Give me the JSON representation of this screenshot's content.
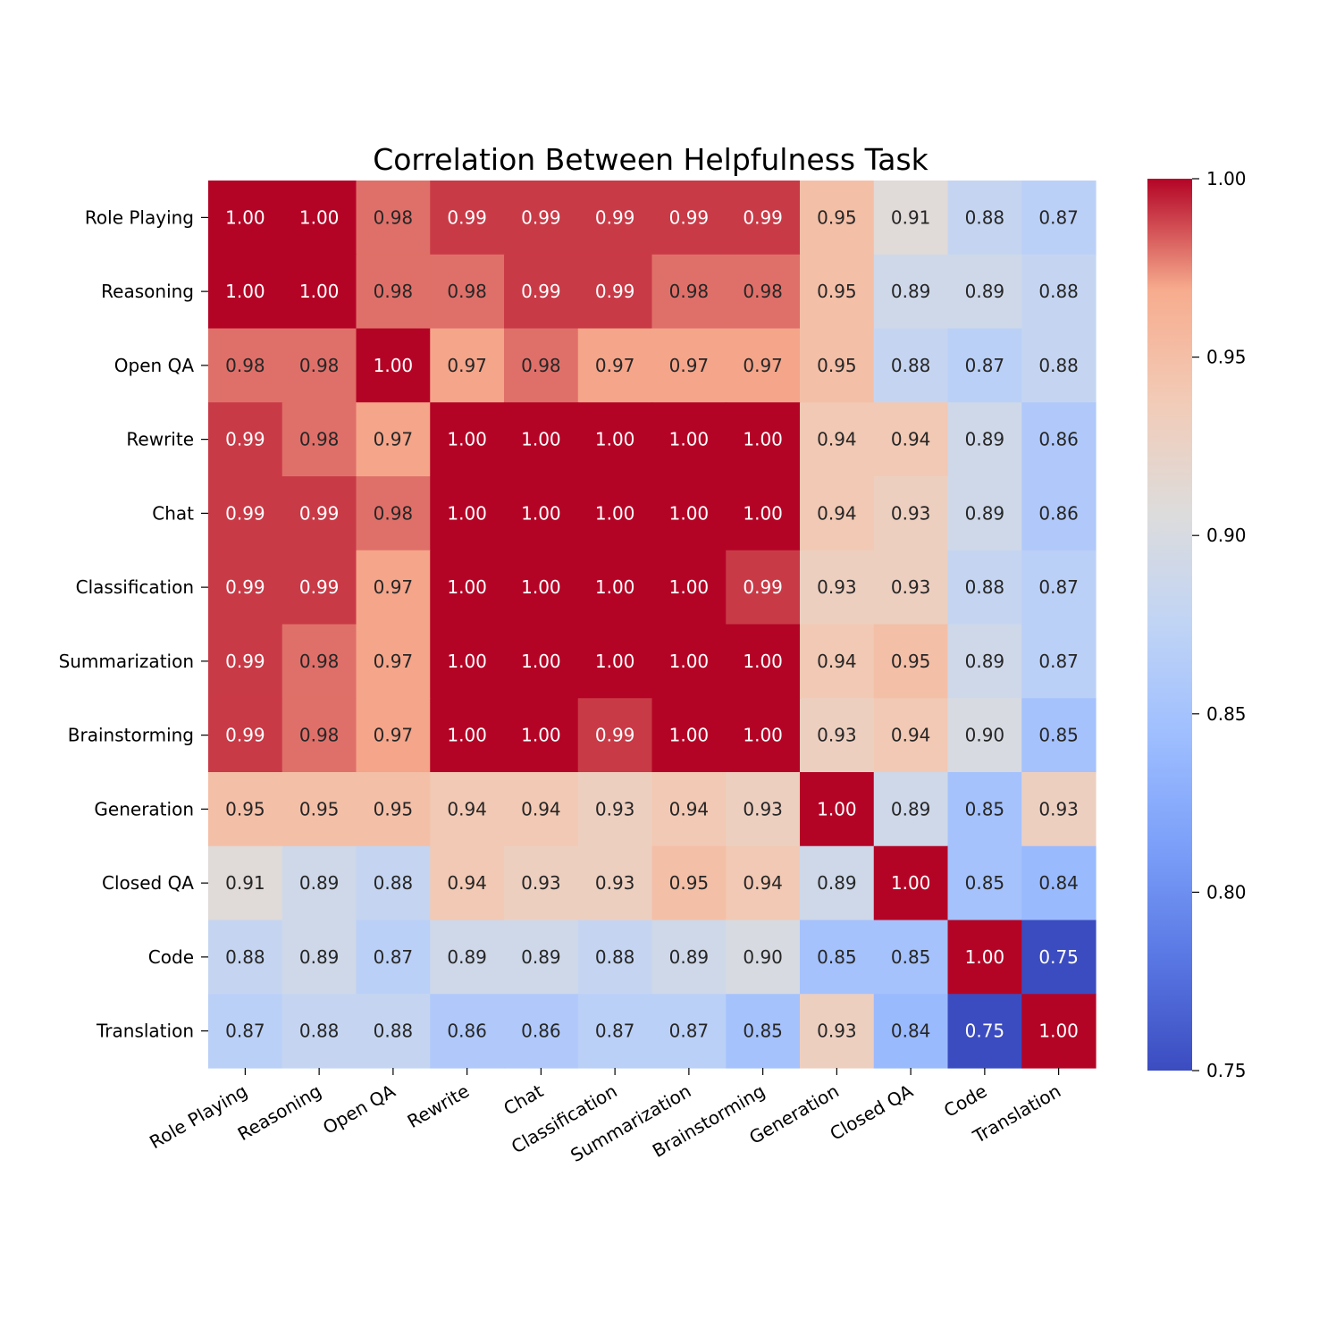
{
  "chart_data": {
    "type": "heatmap",
    "title": "Correlation Between Helpfulness Task",
    "xlabel": "",
    "ylabel": "",
    "categories": [
      "Role Playing",
      "Reasoning",
      "Open QA",
      "Rewrite",
      "Chat",
      "Classification",
      "Summarization",
      "Brainstorming",
      "Generation",
      "Closed QA",
      "Code",
      "Translation"
    ],
    "values": [
      [
        1.0,
        1.0,
        0.98,
        0.99,
        0.99,
        0.99,
        0.99,
        0.99,
        0.95,
        0.91,
        0.88,
        0.87
      ],
      [
        1.0,
        1.0,
        0.98,
        0.98,
        0.99,
        0.99,
        0.98,
        0.98,
        0.95,
        0.89,
        0.89,
        0.88
      ],
      [
        0.98,
        0.98,
        1.0,
        0.97,
        0.98,
        0.97,
        0.97,
        0.97,
        0.95,
        0.88,
        0.87,
        0.88
      ],
      [
        0.99,
        0.98,
        0.97,
        1.0,
        1.0,
        1.0,
        1.0,
        1.0,
        0.94,
        0.94,
        0.89,
        0.86
      ],
      [
        0.99,
        0.99,
        0.98,
        1.0,
        1.0,
        1.0,
        1.0,
        1.0,
        0.94,
        0.93,
        0.89,
        0.86
      ],
      [
        0.99,
        0.99,
        0.97,
        1.0,
        1.0,
        1.0,
        1.0,
        0.99,
        0.93,
        0.93,
        0.88,
        0.87
      ],
      [
        0.99,
        0.98,
        0.97,
        1.0,
        1.0,
        1.0,
        1.0,
        1.0,
        0.94,
        0.95,
        0.89,
        0.87
      ],
      [
        0.99,
        0.98,
        0.97,
        1.0,
        1.0,
        0.99,
        1.0,
        1.0,
        0.93,
        0.94,
        0.9,
        0.85
      ],
      [
        0.95,
        0.95,
        0.95,
        0.94,
        0.94,
        0.93,
        0.94,
        0.93,
        1.0,
        0.89,
        0.85,
        0.93
      ],
      [
        0.91,
        0.89,
        0.88,
        0.94,
        0.93,
        0.93,
        0.95,
        0.94,
        0.89,
        1.0,
        0.85,
        0.84
      ],
      [
        0.88,
        0.89,
        0.87,
        0.89,
        0.89,
        0.88,
        0.89,
        0.9,
        0.85,
        0.85,
        1.0,
        0.75
      ],
      [
        0.87,
        0.88,
        0.88,
        0.86,
        0.86,
        0.87,
        0.87,
        0.85,
        0.93,
        0.84,
        0.75,
        1.0
      ]
    ],
    "colormap": "coolwarm",
    "color_range": [
      0.75,
      1.0
    ],
    "colorbar_ticks": [
      "0.75",
      "0.80",
      "0.85",
      "0.90",
      "0.95",
      "1.00"
    ],
    "colorbar_position": "right",
    "grid": false
  }
}
